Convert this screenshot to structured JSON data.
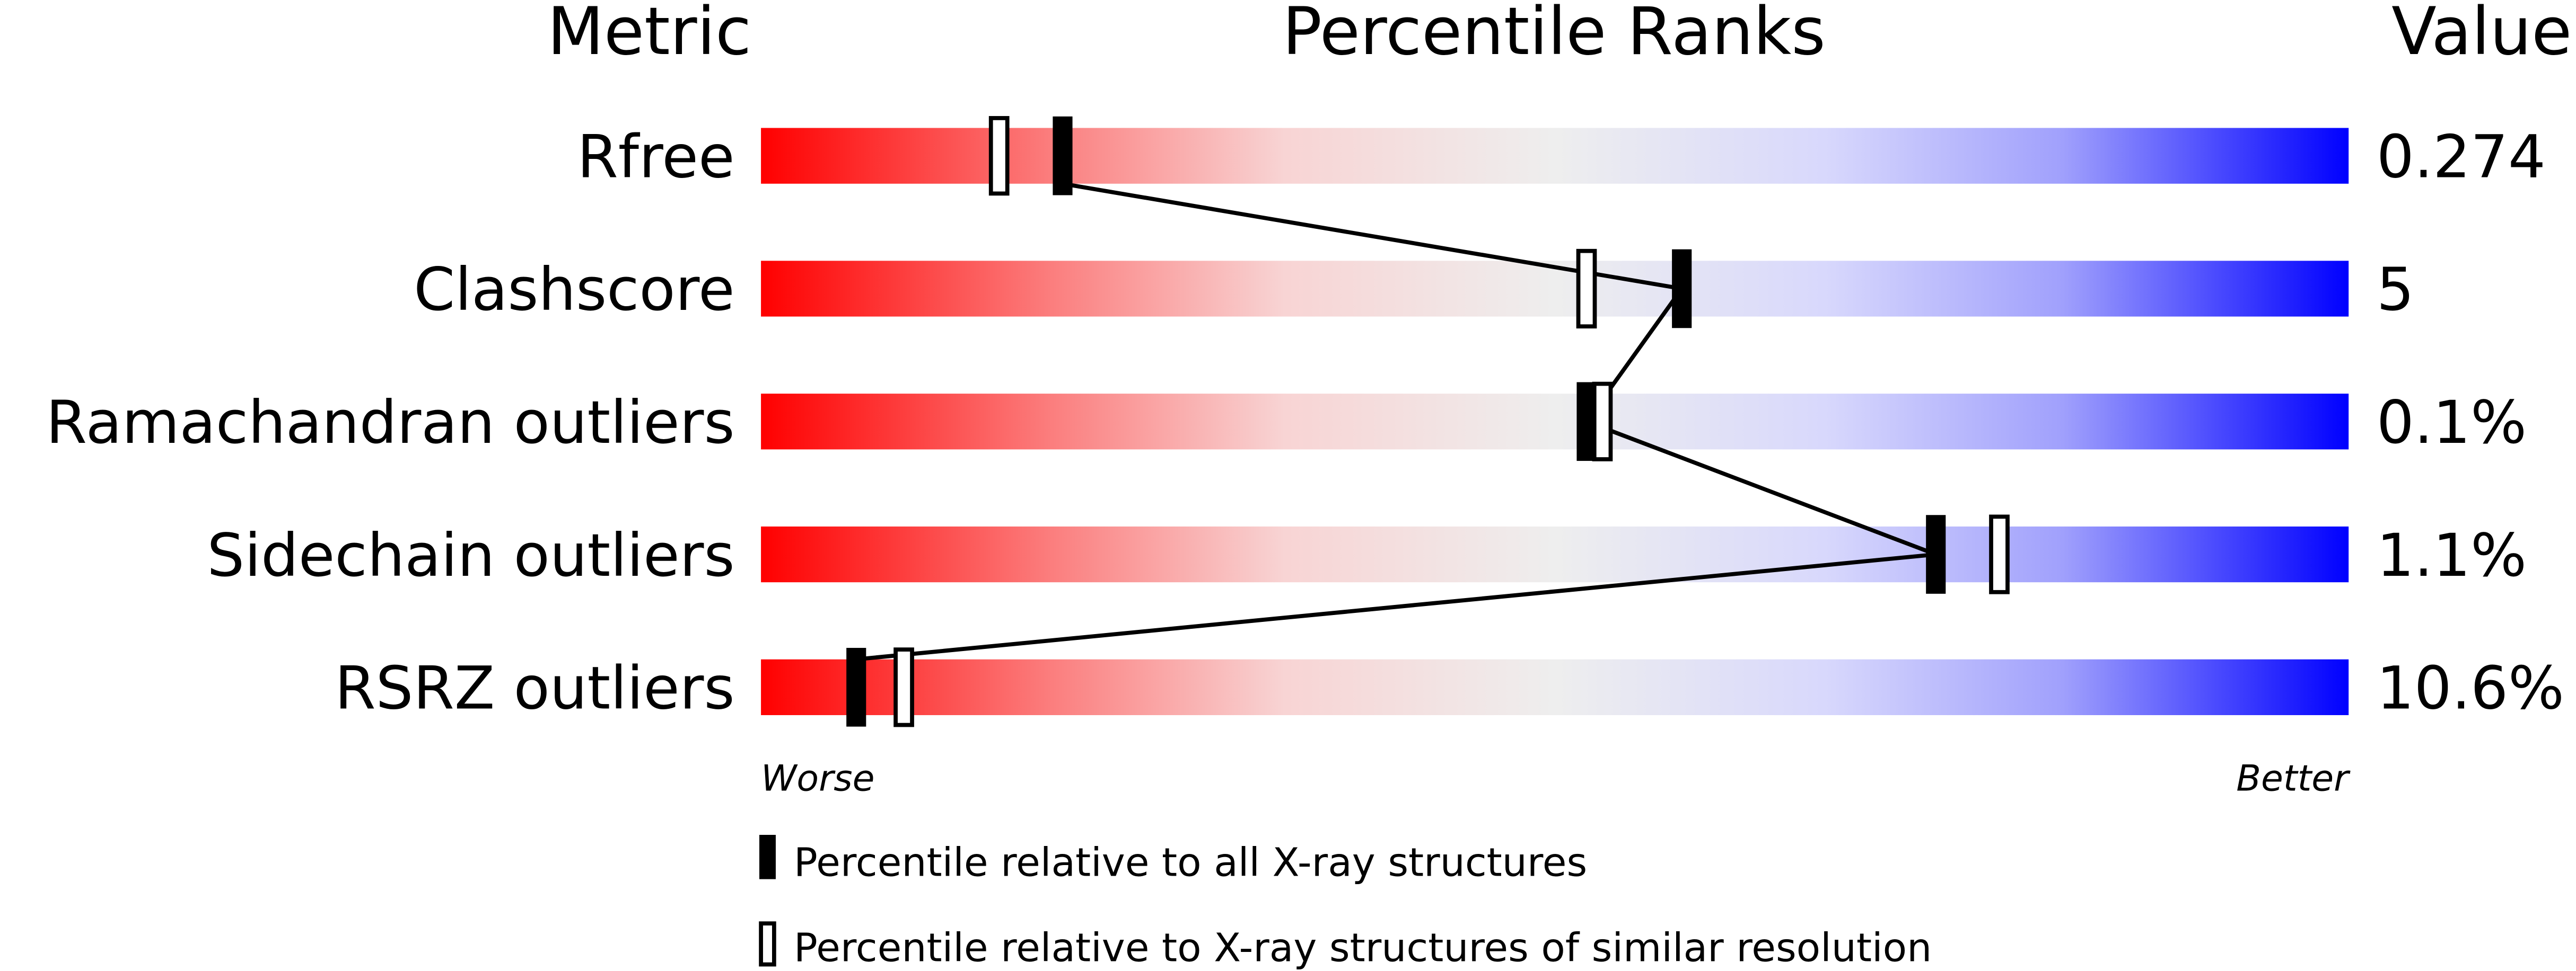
{
  "chart_data": {
    "type": "percentile-ranks",
    "headers": {
      "metric": "Metric",
      "ranks": "Percentile Ranks",
      "value": "Value"
    },
    "xlim": [
      0,
      100
    ],
    "axis_labels": {
      "left": "Worse",
      "right": "Better"
    },
    "colors": {
      "worse": "#ff0000",
      "mid": "#eeeeee",
      "better": "#0000ff",
      "marker": "#000000"
    },
    "metrics": [
      {
        "name": "Rfree",
        "value": "0.274",
        "percentile_all": 19,
        "percentile_similar": 15
      },
      {
        "name": "Clashscore",
        "value": "5",
        "percentile_all": 58,
        "percentile_similar": 52
      },
      {
        "name": "Ramachandran outliers",
        "value": "0.1%",
        "percentile_all": 52,
        "percentile_similar": 53
      },
      {
        "name": "Sidechain outliers",
        "value": "1.1%",
        "percentile_all": 74,
        "percentile_similar": 78
      },
      {
        "name": "RSRZ outliers",
        "value": "10.6%",
        "percentile_all": 6,
        "percentile_similar": 9
      }
    ],
    "legend": [
      {
        "marker": "filled",
        "label": "Percentile relative to all X-ray structures"
      },
      {
        "marker": "open",
        "label": "Percentile relative to X-ray structures of similar resolution"
      }
    ]
  }
}
